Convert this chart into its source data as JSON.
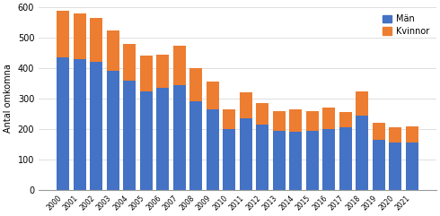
{
  "years": [
    2000,
    2001,
    2002,
    2003,
    2004,
    2005,
    2006,
    2007,
    2008,
    2009,
    2010,
    2011,
    2012,
    2013,
    2014,
    2015,
    2016,
    2017,
    2018,
    2019,
    2020,
    2021
  ],
  "man": [
    435,
    430,
    420,
    390,
    360,
    325,
    335,
    345,
    290,
    265,
    200,
    235,
    215,
    195,
    190,
    195,
    200,
    205,
    245,
    165,
    155,
    155
  ],
  "kvinnor": [
    155,
    150,
    145,
    135,
    120,
    115,
    110,
    130,
    110,
    90,
    65,
    85,
    70,
    65,
    75,
    65,
    70,
    50,
    80,
    55,
    50,
    55
  ],
  "man_color": "#4472C4",
  "kvinnor_color": "#ED7D31",
  "ylabel": "Antal omkomna",
  "ylim": [
    0,
    600
  ],
  "yticks": [
    0,
    100,
    200,
    300,
    400,
    500,
    600
  ],
  "legend_man": "Män",
  "legend_kvinnor": "Kvinnor",
  "grid_color": "#d9d9d9"
}
